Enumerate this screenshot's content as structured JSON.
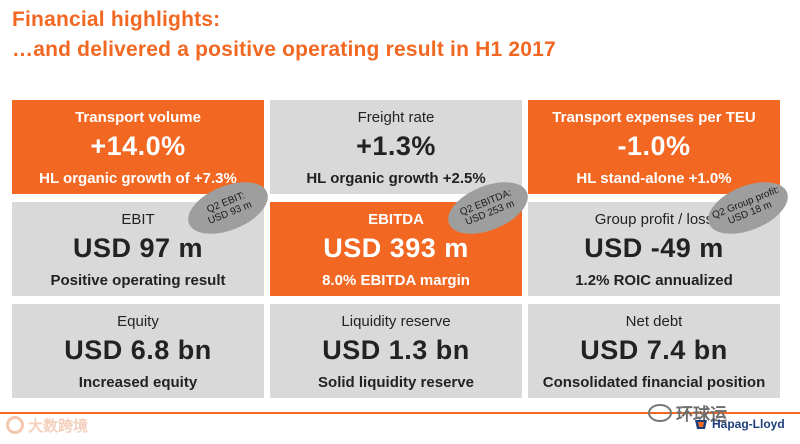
{
  "header": {
    "title_line1": "Financial highlights:",
    "title_line2": "…and delivered a positive operating result in H1 2017"
  },
  "tiles": [
    {
      "label": "Transport volume",
      "value": "+14.0%",
      "sub": "HL organic growth of +7.3%",
      "style": "orange"
    },
    {
      "label": "Freight rate",
      "value": "+1.3%",
      "sub": "HL organic growth +2.5%",
      "style": "grey"
    },
    {
      "label": "Transport expenses per TEU",
      "value": "-1.0%",
      "sub": "HL stand-alone +1.0%",
      "style": "orange"
    },
    {
      "label": "EBIT",
      "value": "USD 97 m",
      "sub": "Positive operating result",
      "style": "grey"
    },
    {
      "label": "EBITDA",
      "value": "USD 393 m",
      "sub": "8.0% EBITDA margin",
      "style": "orange"
    },
    {
      "label": "Group profit / loss",
      "value": "USD -49 m",
      "sub": "1.2% ROIC annualized",
      "style": "grey"
    },
    {
      "label": "Equity",
      "value": "USD 6.8 bn",
      "sub": "Increased equity",
      "style": "grey"
    },
    {
      "label": "Liquidity reserve",
      "value": "USD 1.3 bn",
      "sub": "Solid liquidity reserve",
      "style": "grey"
    },
    {
      "label": "Net debt",
      "value": "USD 7.4 bn",
      "sub": "Consolidated financial position",
      "style": "grey"
    }
  ],
  "callouts": [
    {
      "line1": "Q2 EBIT:",
      "line2": "USD 93 m"
    },
    {
      "line1": "Q2 EBITDA:",
      "line2": "USD 253 m"
    },
    {
      "line1": "Q2 Group profit:",
      "line2": "USD 18 m"
    }
  ],
  "watermarks": {
    "left": "大数跨境",
    "right": "环球运"
  },
  "logo": {
    "text": "Hapag-Lloyd"
  },
  "colors": {
    "accent": "#f26722",
    "tile_grey": "#d9d9d9",
    "callout_grey": "#9e9e9e",
    "logo_blue": "#1d3e7a"
  }
}
